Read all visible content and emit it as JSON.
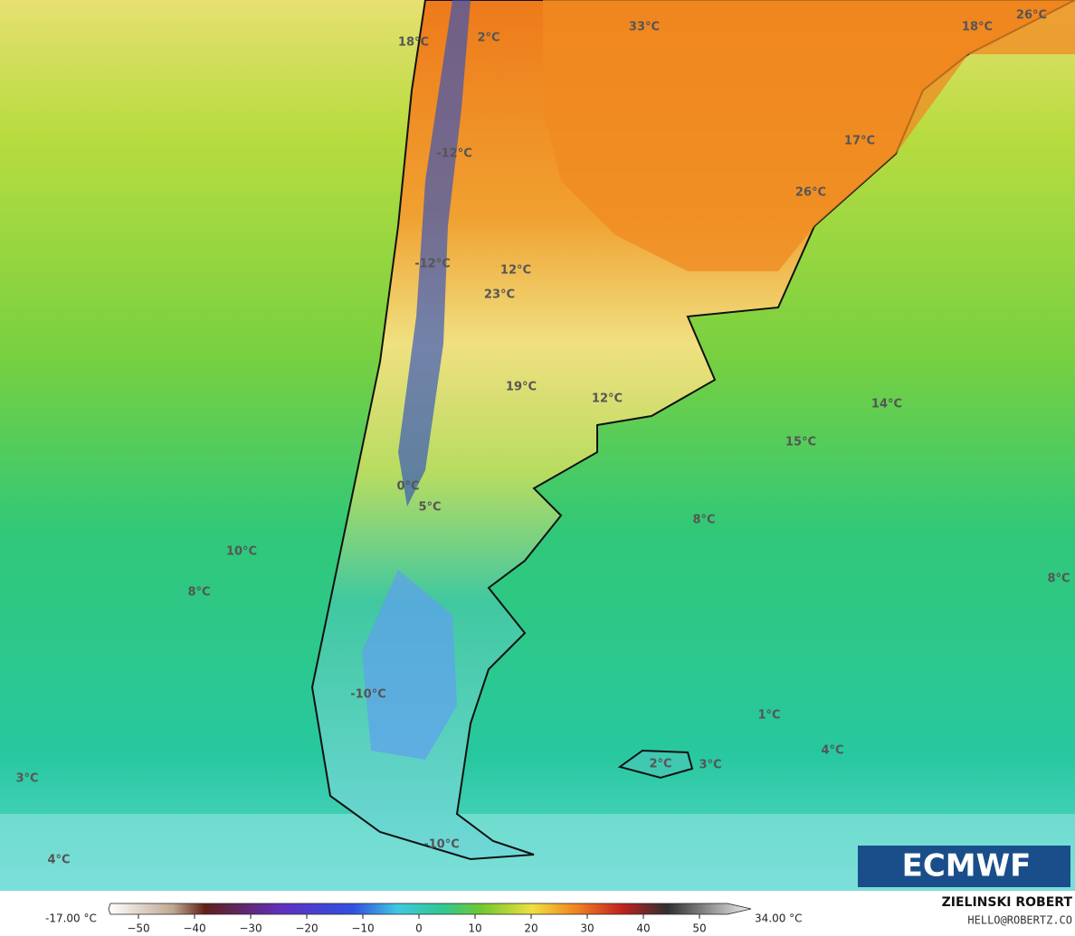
{
  "map_labels": [
    "18°C",
    "2°C",
    "33°C",
    "18°C",
    "26°C",
    "17°C",
    "-12°C",
    "26°C",
    "-12°C",
    "12°C",
    "23°C",
    "19°C",
    "12°C",
    "14°C",
    "15°C",
    "0°C",
    "5°C",
    "8°C",
    "10°C",
    "8°C",
    "8°C",
    "-10°C",
    "1°C",
    "4°C",
    "3°C",
    "2°C",
    "3°C",
    "4°C",
    "-10°C"
  ],
  "logo": "ECMWF",
  "author": {
    "name": "ZIELINSKI ROBERT",
    "contact": "HELLO@ROBERTZ.CO"
  },
  "colorbar": {
    "min_label": "-17.00 °C",
    "max_label": "34.00 °C",
    "lim": [
      -55,
      55
    ],
    "ticks": [
      {
        "value": -50,
        "label": "−50"
      },
      {
        "value": -40,
        "label": "−40"
      },
      {
        "value": -30,
        "label": "−30"
      },
      {
        "value": -20,
        "label": "−20"
      },
      {
        "value": -10,
        "label": "−10"
      },
      0,
      10,
      20,
      30,
      40,
      50
    ]
  }
}
